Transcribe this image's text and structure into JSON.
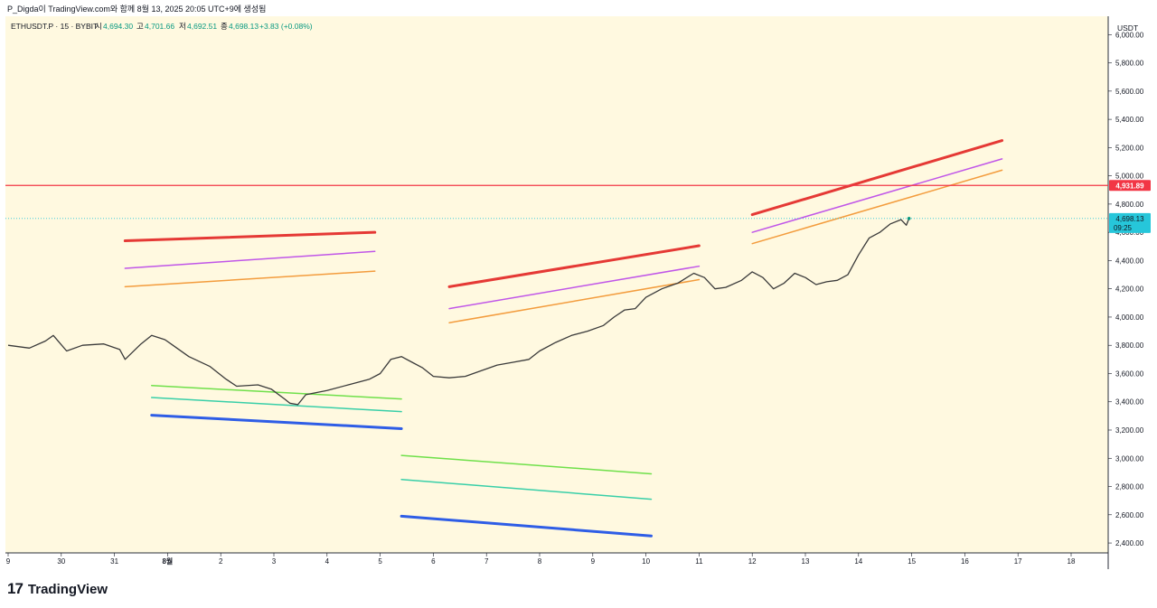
{
  "header": {
    "caption": "P_Digda이 TradingView.com와 함께 8월 13, 2025 20:05 UTC+9에 생성됨"
  },
  "brand": {
    "logo": "17",
    "name": "TradingView"
  },
  "chart_data": {
    "type": "line",
    "legend": {
      "symbol": "ETHUSDT.P · 15 · BYBIT",
      "open_label": "시",
      "open": "4,694.30",
      "high_label": "고",
      "high": "4,701.66",
      "low_label": "저",
      "low": "4,692.51",
      "close_label": "종",
      "close": "4,698.13",
      "change": "+3.83 (+0.08%)"
    },
    "currency": "USDT",
    "ylim": [
      2330,
      6130
    ],
    "y_ticks": [
      "2,400.00",
      "2,600.00",
      "2,800.00",
      "3,000.00",
      "3,200.00",
      "3,400.00",
      "3,600.00",
      "3,800.00",
      "4,000.00",
      "4,200.00",
      "4,400.00",
      "4,600.00",
      "4,800.00",
      "5,000.00",
      "5,200.00",
      "5,400.00",
      "5,600.00",
      "5,800.00",
      "6,000.00"
    ],
    "x_ticks": [
      "9",
      "30",
      "31",
      "8월",
      "2",
      "3",
      "4",
      "5",
      "6",
      "7",
      "8",
      "9",
      "10",
      "11",
      "12",
      "13",
      "14",
      "15",
      "16",
      "17",
      "18"
    ],
    "horizontal_line": {
      "value": 4931.89,
      "label": "4,931.89",
      "color": "#f23645"
    },
    "last_price": {
      "value": 4698.13,
      "label": "4,698.13",
      "countdown": "09:25",
      "color": "#26c6da"
    },
    "series": [
      {
        "color": "#3a3a3a",
        "points": [
          [
            0,
            3800
          ],
          [
            0.4,
            3780
          ],
          [
            0.7,
            3830
          ],
          [
            0.85,
            3870
          ],
          [
            1.1,
            3760
          ],
          [
            1.4,
            3800
          ],
          [
            1.8,
            3810
          ],
          [
            2.1,
            3770
          ],
          [
            2.2,
            3700
          ],
          [
            2.5,
            3810
          ],
          [
            2.7,
            3870
          ],
          [
            2.95,
            3840
          ],
          [
            3.1,
            3800
          ],
          [
            3.4,
            3720
          ],
          [
            3.8,
            3650
          ],
          [
            4.1,
            3560
          ],
          [
            4.3,
            3510
          ],
          [
            4.7,
            3520
          ],
          [
            4.95,
            3490
          ],
          [
            5.2,
            3420
          ],
          [
            5.3,
            3390
          ],
          [
            5.45,
            3380
          ],
          [
            5.6,
            3450
          ],
          [
            6.0,
            3480
          ],
          [
            6.4,
            3520
          ],
          [
            6.8,
            3560
          ],
          [
            7.0,
            3600
          ],
          [
            7.2,
            3700
          ],
          [
            7.4,
            3720
          ],
          [
            7.6,
            3680
          ],
          [
            7.8,
            3640
          ],
          [
            8.0,
            3580
          ],
          [
            8.3,
            3570
          ],
          [
            8.6,
            3580
          ],
          [
            8.9,
            3620
          ],
          [
            9.2,
            3660
          ],
          [
            9.5,
            3680
          ],
          [
            9.8,
            3700
          ],
          [
            10.0,
            3760
          ],
          [
            10.3,
            3820
          ],
          [
            10.6,
            3870
          ],
          [
            10.9,
            3900
          ],
          [
            11.2,
            3940
          ],
          [
            11.4,
            4000
          ],
          [
            11.6,
            4050
          ],
          [
            11.8,
            4060
          ],
          [
            12.0,
            4140
          ],
          [
            12.3,
            4200
          ],
          [
            12.6,
            4240
          ],
          [
            12.9,
            4310
          ],
          [
            13.1,
            4280
          ],
          [
            13.3,
            4200
          ],
          [
            13.5,
            4210
          ],
          [
            13.8,
            4260
          ],
          [
            14.0,
            4320
          ],
          [
            14.2,
            4280
          ],
          [
            14.4,
            4200
          ],
          [
            14.6,
            4240
          ],
          [
            14.8,
            4310
          ],
          [
            15.0,
            4280
          ],
          [
            15.2,
            4230
          ],
          [
            15.4,
            4250
          ],
          [
            15.6,
            4260
          ],
          [
            15.8,
            4300
          ],
          [
            16.0,
            4440
          ],
          [
            16.2,
            4560
          ],
          [
            16.4,
            4600
          ],
          [
            16.6,
            4660
          ],
          [
            16.8,
            4690
          ],
          [
            16.9,
            4650
          ],
          [
            16.95,
            4698
          ]
        ]
      }
    ],
    "trendlines": [
      {
        "color": "#e53935",
        "width": 3,
        "points": [
          [
            2.2,
            4540
          ],
          [
            6.9,
            4600
          ]
        ]
      },
      {
        "color": "#c056e8",
        "width": 1.5,
        "points": [
          [
            2.2,
            4345
          ],
          [
            6.9,
            4465
          ]
        ]
      },
      {
        "color": "#f39c3d",
        "width": 1.5,
        "points": [
          [
            2.2,
            4215
          ],
          [
            6.9,
            4325
          ]
        ]
      },
      {
        "color": "#e53935",
        "width": 3,
        "points": [
          [
            8.3,
            4215
          ],
          [
            13.0,
            4505
          ]
        ]
      },
      {
        "color": "#c056e8",
        "width": 1.5,
        "points": [
          [
            8.3,
            4060
          ],
          [
            13.0,
            4360
          ]
        ]
      },
      {
        "color": "#f39c3d",
        "width": 1.5,
        "points": [
          [
            8.3,
            3960
          ],
          [
            13.0,
            4265
          ]
        ]
      },
      {
        "color": "#e53935",
        "width": 3,
        "points": [
          [
            14.0,
            4725
          ],
          [
            18.7,
            5250
          ]
        ]
      },
      {
        "color": "#c056e8",
        "width": 1.5,
        "points": [
          [
            14.0,
            4600
          ],
          [
            18.7,
            5120
          ]
        ]
      },
      {
        "color": "#f39c3d",
        "width": 1.5,
        "points": [
          [
            14.0,
            4520
          ],
          [
            18.7,
            5040
          ]
        ]
      },
      {
        "color": "#2e5de6",
        "width": 3,
        "points": [
          [
            2.7,
            3305
          ],
          [
            7.4,
            3210
          ]
        ]
      },
      {
        "color": "#39cfa8",
        "width": 1.5,
        "points": [
          [
            2.7,
            3430
          ],
          [
            7.4,
            3330
          ]
        ]
      },
      {
        "color": "#6fe04a",
        "width": 1.5,
        "points": [
          [
            2.7,
            3515
          ],
          [
            7.4,
            3420
          ]
        ]
      },
      {
        "color": "#2e5de6",
        "width": 3,
        "points": [
          [
            7.4,
            2590
          ],
          [
            12.1,
            2450
          ]
        ]
      },
      {
        "color": "#39cfa8",
        "width": 1.5,
        "points": [
          [
            7.4,
            2850
          ],
          [
            12.1,
            2710
          ]
        ]
      },
      {
        "color": "#6fe04a",
        "width": 1.5,
        "points": [
          [
            7.4,
            3020
          ],
          [
            12.1,
            2890
          ]
        ]
      }
    ]
  }
}
